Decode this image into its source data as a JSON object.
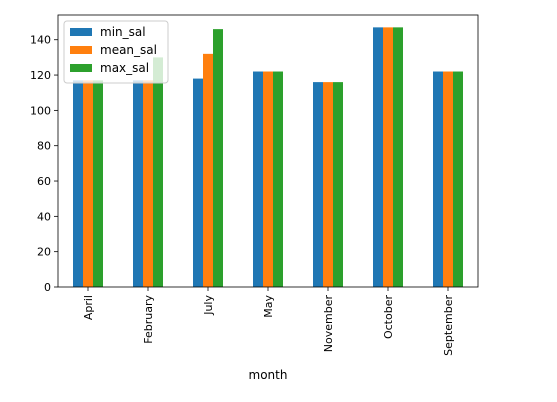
{
  "chart_data": {
    "type": "bar",
    "title": "",
    "xlabel": "month",
    "ylabel": "",
    "categories": [
      "April",
      "February",
      "July",
      "May",
      "November",
      "October",
      "September"
    ],
    "series": [
      {
        "name": "min_sal",
        "color": "#1f77b4",
        "values": [
          117,
          117,
          118,
          122,
          116,
          147,
          122
        ]
      },
      {
        "name": "mean_sal",
        "color": "#ff7f0e",
        "values": [
          117,
          117,
          132,
          122,
          116,
          147,
          122
        ]
      },
      {
        "name": "max_sal",
        "color": "#2ca02c",
        "values": [
          117,
          130,
          146,
          122,
          116,
          147,
          122
        ]
      }
    ],
    "ylim": [
      0,
      154
    ],
    "yticks": [
      0,
      20,
      40,
      60,
      80,
      100,
      120,
      140
    ],
    "grid": false,
    "legend_position": "top-left"
  }
}
